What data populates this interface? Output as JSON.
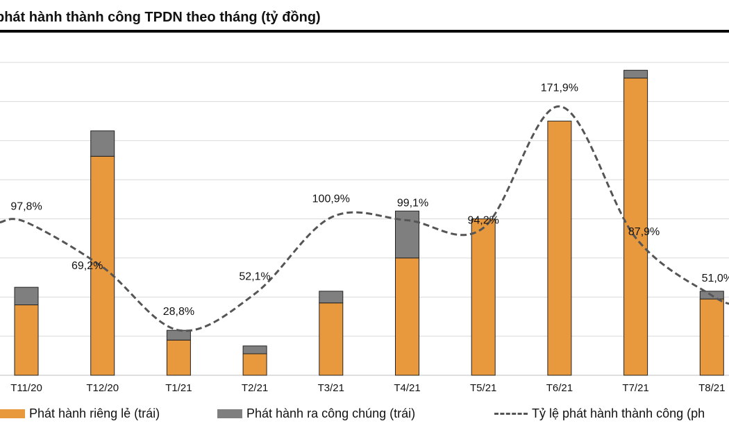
{
  "chart_data": {
    "type": "bar",
    "title": "phát hành thành công TPDN theo tháng (tỷ đồng)",
    "categories": [
      "T11/20",
      "T12/20",
      "T1/21",
      "T2/21",
      "T3/21",
      "T4/21",
      "T5/21",
      "T6/21",
      "T7/21",
      "T8/21"
    ],
    "stacked": true,
    "series": [
      {
        "name": "Phát hành riêng lẻ (trái)",
        "axis": "left",
        "color": "#E8993E",
        "values": [
          18,
          56,
          9,
          5.5,
          18.5,
          30,
          40,
          65,
          76,
          19.5
        ]
      },
      {
        "name": "Phát hành ra công chúng (trái)",
        "axis": "left",
        "color": "#7F7F7F",
        "values": [
          4.5,
          6.5,
          2.5,
          2,
          3,
          12,
          0,
          0,
          2,
          2
        ]
      },
      {
        "name": "Tỷ lệ phát hành thành công (ph",
        "axis": "right",
        "type": "line",
        "dash": true,
        "color": "#555555",
        "values": [
          97.8,
          69.2,
          28.8,
          52.1,
          100.9,
          99.1,
          94.2,
          171.9,
          87.9,
          51.0
        ],
        "labels": [
          "97,8%",
          "69,2%",
          "28,8%",
          "52,1%",
          "100,9%",
          "99,1%",
          "94,2%",
          "171,9%",
          "87,9%",
          "51,0%"
        ]
      }
    ],
    "ylim_left": [
      0,
      80
    ],
    "ylim_right": [
      0,
      200
    ],
    "grid": true,
    "legend_position": "bottom"
  }
}
